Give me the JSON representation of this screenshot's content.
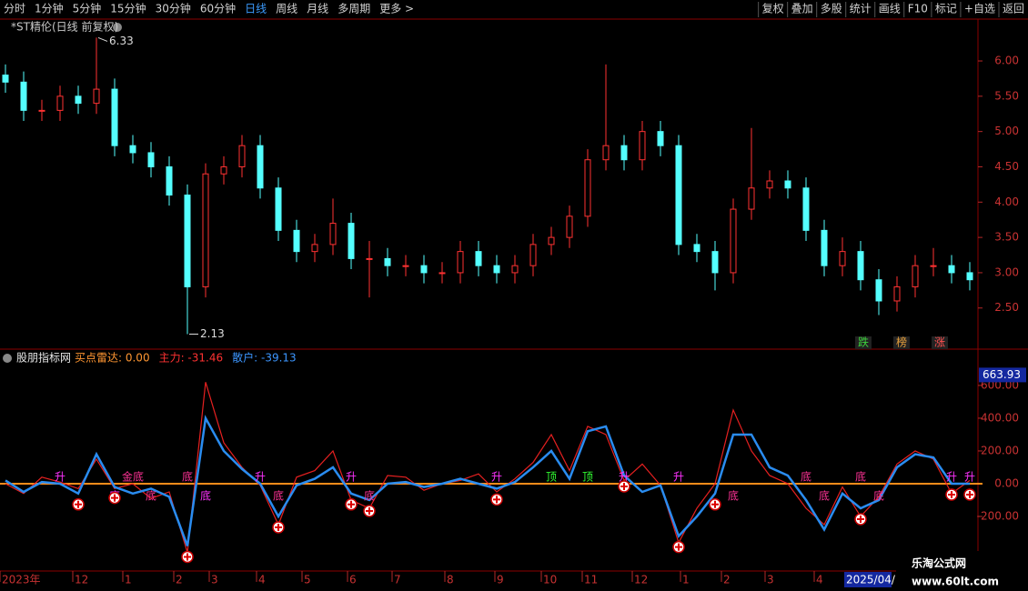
{
  "toolbar": {
    "left": [
      "分时",
      "1分钟",
      "5分钟",
      "15分钟",
      "30分钟",
      "60分钟",
      "日线",
      "周线",
      "月线",
      "多周期",
      "更多 >"
    ],
    "active": "日线",
    "right": [
      "复权",
      "叠加",
      "多股",
      "统计",
      "画线",
      "F10",
      "标记",
      "+自选",
      "返回"
    ]
  },
  "chart_data": [
    {
      "type": "candlestick",
      "title": "*ST精伦(日线 前复权)",
      "up_color": "#ff3232",
      "down_color": "#54ffff",
      "open": [
        5.8,
        5.7,
        5.3,
        5.3,
        5.5,
        5.4,
        5.6,
        4.8,
        4.7,
        4.5,
        4.1,
        2.8,
        4.4,
        4.5,
        4.8,
        4.2,
        3.6,
        3.3,
        3.4,
        3.7,
        3.2,
        3.2,
        3.1,
        3.1,
        3.0,
        3.0,
        3.3,
        3.1,
        3.0,
        3.1,
        3.4,
        3.5,
        3.8,
        4.6,
        4.8,
        4.6,
        5.0,
        4.8,
        3.4,
        3.3,
        3.0,
        3.9,
        4.2,
        4.3,
        4.2,
        3.6,
        3.1,
        3.3,
        2.9,
        2.6,
        2.8,
        3.1,
        3.1,
        3.0
      ],
      "high": [
        5.95,
        5.85,
        5.45,
        5.65,
        5.65,
        6.33,
        5.75,
        4.95,
        4.85,
        4.65,
        4.25,
        4.55,
        4.65,
        4.95,
        4.95,
        4.35,
        3.75,
        3.55,
        4.05,
        3.85,
        3.45,
        3.35,
        3.25,
        3.25,
        3.15,
        3.45,
        3.45,
        3.25,
        3.25,
        3.55,
        3.65,
        3.95,
        4.75,
        5.95,
        4.95,
        5.15,
        5.15,
        4.95,
        3.55,
        3.45,
        4.05,
        5.05,
        4.45,
        4.45,
        4.35,
        3.75,
        3.5,
        3.45,
        3.05,
        2.95,
        3.25,
        3.35,
        3.25,
        3.15
      ],
      "low": [
        5.55,
        5.15,
        5.15,
        5.15,
        5.25,
        5.25,
        4.65,
        4.55,
        4.35,
        3.95,
        2.13,
        2.65,
        4.25,
        4.35,
        4.05,
        3.45,
        3.15,
        3.15,
        3.25,
        3.05,
        2.65,
        2.95,
        2.95,
        2.85,
        2.85,
        2.85,
        2.95,
        2.85,
        2.85,
        2.95,
        3.25,
        3.35,
        3.65,
        4.45,
        4.45,
        4.45,
        4.65,
        3.25,
        3.15,
        2.75,
        2.85,
        3.75,
        4.05,
        4.05,
        3.45,
        2.95,
        2.95,
        2.75,
        2.4,
        2.45,
        2.65,
        2.95,
        2.85,
        2.75
      ],
      "close": [
        5.7,
        5.3,
        5.3,
        5.5,
        5.4,
        5.6,
        4.8,
        4.7,
        4.5,
        4.1,
        2.8,
        4.4,
        4.5,
        4.8,
        4.2,
        3.6,
        3.3,
        3.4,
        3.7,
        3.2,
        3.2,
        3.1,
        3.1,
        3.0,
        3.0,
        3.3,
        3.1,
        3.0,
        3.1,
        3.4,
        3.5,
        3.8,
        4.6,
        4.8,
        4.6,
        5.0,
        4.8,
        3.4,
        3.3,
        3.0,
        3.9,
        4.2,
        4.3,
        4.2,
        3.6,
        3.1,
        3.3,
        2.9,
        2.6,
        2.8,
        3.1,
        3.1,
        3.0,
        2.9
      ],
      "ylim": [
        1.93,
        6.58
      ],
      "yticks": [
        {
          "value": 6,
          "label": "6.00"
        },
        {
          "value": 5.5,
          "label": "5.50"
        },
        {
          "value": 5,
          "label": "5.00"
        },
        {
          "value": 4.5,
          "label": "4.50"
        },
        {
          "value": 4,
          "label": "4.00"
        },
        {
          "value": 3.5,
          "label": "3.50"
        },
        {
          "value": 3,
          "label": "3.00"
        },
        {
          "value": 2.5,
          "label": "2.50"
        }
      ],
      "badges": [
        {
          "label": "跌",
          "color": "#3cd23c"
        },
        {
          "label": "榜",
          "color": "#e6a03c"
        },
        {
          "label": "涨",
          "color": "#ff5050"
        }
      ]
    },
    {
      "type": "line",
      "title": "股朋指标网",
      "readout": [
        {
          "label": "买点雷达: 0.00",
          "color": "#ff9632"
        },
        {
          "label": "主力: -31.46",
          "color": "#ff3232"
        },
        {
          "label": "散户: -39.13",
          "color": "#3c96ff"
        }
      ],
      "series": [
        {
          "name": "主力",
          "color": "#e62020",
          "values": [
            0,
            -60,
            40,
            10,
            -30,
            150,
            -30,
            0,
            -90,
            -50,
            -420,
            620,
            250,
            100,
            -10,
            -250,
            40,
            80,
            200,
            -100,
            -150,
            50,
            40,
            -40,
            0,
            20,
            60,
            -50,
            30,
            130,
            300,
            80,
            350,
            300,
            20,
            120,
            -10,
            -360,
            -150,
            0,
            450,
            200,
            50,
            0,
            -150,
            -250,
            -20,
            -200,
            -80,
            120,
            200,
            150,
            -60,
            20
          ]
        },
        {
          "name": "散户",
          "color": "#2a8cf0",
          "values": [
            20,
            -50,
            10,
            0,
            -60,
            180,
            -20,
            -60,
            -30,
            -80,
            -380,
            400,
            200,
            90,
            0,
            -200,
            -10,
            30,
            100,
            -60,
            -100,
            0,
            10,
            -20,
            0,
            30,
            0,
            -30,
            10,
            100,
            200,
            30,
            320,
            350,
            50,
            -50,
            -10,
            -320,
            -200,
            -60,
            300,
            300,
            100,
            50,
            -100,
            -280,
            -60,
            -150,
            -100,
            100,
            180,
            160,
            0,
            0
          ]
        }
      ],
      "ylim": [
        -533,
        816
      ],
      "yticks": [
        {
          "value": 600,
          "label": "600.00"
        },
        {
          "value": 400,
          "label": "400.00"
        },
        {
          "value": 200,
          "label": "200.00"
        },
        {
          "value": 0,
          "label": "0.00"
        },
        {
          "value": -200,
          "label": "-200.00"
        }
      ],
      "cursor_value": 663.93,
      "buy_points": [
        4,
        6,
        10,
        15,
        19,
        20,
        27,
        34,
        37,
        39,
        47,
        52,
        53
      ],
      "signals": [
        {
          "i": 3,
          "label": "升",
          "color": "#ff32ff"
        },
        {
          "i": 6,
          "label": "底",
          "color": "#ff32ff"
        },
        {
          "i": 7,
          "label": "金底",
          "color": "#ff3296"
        },
        {
          "i": 8,
          "label": "底",
          "color": "#ff3296"
        },
        {
          "i": 10,
          "label": "底",
          "color": "#ff3296"
        },
        {
          "i": 11,
          "label": "底",
          "color": "#ff32ff"
        },
        {
          "i": 14,
          "label": "升",
          "color": "#ff32ff"
        },
        {
          "i": 15,
          "label": "底",
          "color": "#ff3296"
        },
        {
          "i": 19,
          "label": "升",
          "color": "#ff32ff"
        },
        {
          "i": 20,
          "label": "底",
          "color": "#ff3296"
        },
        {
          "i": 27,
          "label": "升",
          "color": "#ff32ff"
        },
        {
          "i": 30,
          "label": "顶",
          "color": "#32ff32"
        },
        {
          "i": 32,
          "label": "顶",
          "color": "#32ff32"
        },
        {
          "i": 34,
          "label": "升",
          "color": "#ff32ff"
        },
        {
          "i": 37,
          "label": "升",
          "color": "#ff32ff"
        },
        {
          "i": 40,
          "label": "底",
          "color": "#ff3296"
        },
        {
          "i": 44,
          "label": "底",
          "color": "#ff3296"
        },
        {
          "i": 45,
          "label": "底",
          "color": "#ff3296"
        },
        {
          "i": 47,
          "label": "底",
          "color": "#ff3296"
        },
        {
          "i": 48,
          "label": "底",
          "color": "#ff3296"
        },
        {
          "i": 52,
          "label": "升",
          "color": "#ff32ff"
        },
        {
          "i": 53,
          "label": "升",
          "color": "#ff32ff"
        }
      ]
    }
  ],
  "x_labels": [
    "2023年",
    "12",
    "1",
    "2",
    "3",
    "4",
    "5",
    "6",
    "7",
    "8",
    "9",
    "10",
    "11",
    "12",
    "1",
    "2",
    "3",
    "4"
  ],
  "cursor_date": "2025/04/",
  "watermark": {
    "name": "乐淘公式网",
    "url": "www.60lt.com"
  }
}
